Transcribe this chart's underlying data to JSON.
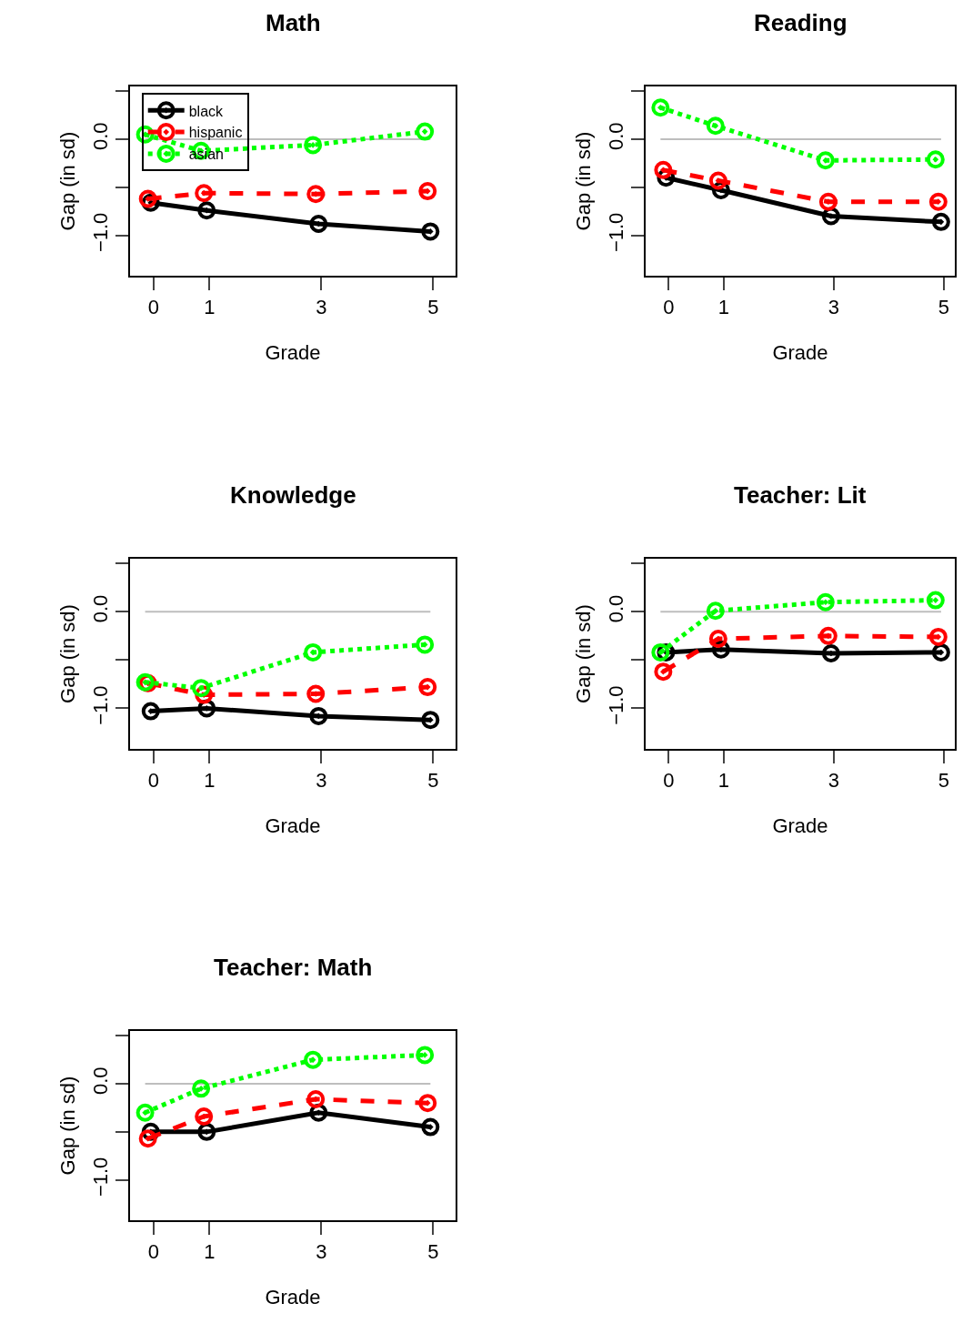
{
  "chart_data": [
    {
      "type": "line",
      "title": "Math",
      "xlabel": "Grade",
      "ylabel": "Gap (in sd)",
      "xlim": [
        -0.42,
        5.4
      ],
      "ylim": [
        -1.42,
        0.55
      ],
      "xticks": [
        0,
        1,
        3,
        5
      ],
      "yticks": [
        {
          "value": 0.5,
          "label": null
        },
        {
          "value": 0,
          "label": "0.0"
        },
        {
          "value": -0.5,
          "label": null
        },
        {
          "value": -1,
          "label": "−1.0"
        }
      ],
      "grid": false,
      "legend": "top left",
      "ref_lines": [
        {
          "axis": "y",
          "value": 0,
          "color": "#bebebe"
        }
      ],
      "series": [
        {
          "name": "black",
          "color": "#000000",
          "line_style": "solid",
          "marker": "circle",
          "x": [
            -0.05,
            0.95,
            2.95,
            4.95
          ],
          "values": [
            -0.66,
            -0.74,
            -0.88,
            -0.96
          ]
        },
        {
          "name": "hispanic",
          "color": "#ff0000",
          "line_style": "dashed",
          "marker": "circle",
          "x": [
            -0.1,
            0.9,
            2.9,
            4.9
          ],
          "values": [
            -0.62,
            -0.56,
            -0.57,
            -0.54
          ]
        },
        {
          "name": "asian",
          "color": "#00ff00",
          "line_style": "dotted",
          "marker": "circle",
          "x": [
            -0.15,
            0.85,
            2.85,
            4.85
          ],
          "values": [
            0.05,
            -0.12,
            -0.06,
            0.08
          ]
        }
      ]
    },
    {
      "type": "line",
      "title": "Reading",
      "xlabel": "Grade",
      "ylabel": "Gap (in sd)",
      "xlim": [
        -0.42,
        5.2
      ],
      "ylim": [
        -1.42,
        0.55
      ],
      "xticks": [
        0,
        1,
        3,
        5
      ],
      "yticks": [
        {
          "value": 0.5,
          "label": null
        },
        {
          "value": 0,
          "label": "0.0"
        },
        {
          "value": -0.5,
          "label": null
        },
        {
          "value": -1,
          "label": "−1.0"
        }
      ],
      "grid": false,
      "legend": false,
      "ref_lines": [
        {
          "axis": "y",
          "value": 0,
          "color": "#bebebe"
        }
      ],
      "series": [
        {
          "color": "#000000",
          "line_style": "solid",
          "marker": "circle",
          "x": [
            -0.05,
            0.95,
            2.95,
            4.95
          ],
          "values": [
            -0.4,
            -0.53,
            -0.8,
            -0.86
          ]
        },
        {
          "color": "#ff0000",
          "line_style": "dashed",
          "marker": "circle",
          "x": [
            -0.1,
            0.9,
            2.9,
            4.9
          ],
          "values": [
            -0.32,
            -0.43,
            -0.65,
            -0.65
          ]
        },
        {
          "color": "#00ff00",
          "line_style": "dotted",
          "marker": "circle",
          "x": [
            -0.15,
            0.85,
            2.85,
            4.85
          ],
          "values": [
            0.33,
            0.14,
            -0.22,
            -0.21
          ]
        }
      ]
    },
    {
      "type": "line",
      "title": "Knowledge",
      "xlabel": "Grade",
      "ylabel": "Gap (in sd)",
      "xlim": [
        -0.42,
        5.4
      ],
      "ylim": [
        -1.42,
        0.55
      ],
      "xticks": [
        0,
        1,
        3,
        5
      ],
      "yticks": [
        {
          "value": 0.5,
          "label": null
        },
        {
          "value": 0,
          "label": "0.0"
        },
        {
          "value": -0.5,
          "label": null
        },
        {
          "value": -1,
          "label": "−1.0"
        }
      ],
      "grid": false,
      "legend": false,
      "ref_lines": [
        {
          "axis": "y",
          "value": 0,
          "color": "#bebebe"
        }
      ],
      "series": [
        {
          "color": "#000000",
          "line_style": "solid",
          "marker": "circle",
          "x": [
            -0.05,
            0.95,
            2.95,
            4.95
          ],
          "values": [
            -1.03,
            -1.0,
            -1.08,
            -1.12
          ]
        },
        {
          "color": "#ff0000",
          "line_style": "dashed",
          "marker": "circle",
          "x": [
            -0.1,
            0.9,
            2.9,
            4.9
          ],
          "values": [
            -0.74,
            -0.86,
            -0.85,
            -0.78
          ]
        },
        {
          "color": "#00ff00",
          "line_style": "dotted",
          "marker": "circle",
          "x": [
            -0.15,
            0.85,
            2.85,
            4.85
          ],
          "values": [
            -0.73,
            -0.79,
            -0.42,
            -0.34
          ]
        }
      ]
    },
    {
      "type": "line",
      "title": "Teacher: Lit",
      "xlabel": "Grade",
      "ylabel": "Gap (in sd)",
      "xlim": [
        -0.42,
        5.2
      ],
      "ylim": [
        -1.42,
        0.55
      ],
      "xticks": [
        0,
        1,
        3,
        5
      ],
      "yticks": [
        {
          "value": 0.5,
          "label": null
        },
        {
          "value": 0,
          "label": "0.0"
        },
        {
          "value": -0.5,
          "label": null
        },
        {
          "value": -1,
          "label": "−1.0"
        }
      ],
      "grid": false,
      "legend": false,
      "ref_lines": [
        {
          "axis": "y",
          "value": 0,
          "color": "#bebebe"
        }
      ],
      "series": [
        {
          "color": "#000000",
          "line_style": "solid",
          "marker": "circle",
          "x": [
            -0.05,
            0.95,
            2.95,
            4.95
          ],
          "values": [
            -0.42,
            -0.39,
            -0.43,
            -0.42
          ]
        },
        {
          "color": "#ff0000",
          "line_style": "dashed",
          "marker": "circle",
          "x": [
            -0.1,
            0.9,
            2.9,
            4.9
          ],
          "values": [
            -0.62,
            -0.28,
            -0.25,
            -0.26
          ]
        },
        {
          "color": "#00ff00",
          "line_style": "dotted",
          "marker": "circle",
          "x": [
            -0.15,
            0.85,
            2.85,
            4.85
          ],
          "values": [
            -0.42,
            0.01,
            0.1,
            0.12
          ]
        }
      ]
    },
    {
      "type": "line",
      "title": "Teacher: Math",
      "xlabel": "Grade",
      "ylabel": "Gap (in sd)",
      "xlim": [
        -0.42,
        5.4
      ],
      "ylim": [
        -1.42,
        0.55
      ],
      "xticks": [
        0,
        1,
        3,
        5
      ],
      "yticks": [
        {
          "value": 0.5,
          "label": null
        },
        {
          "value": 0,
          "label": "0.0"
        },
        {
          "value": -0.5,
          "label": null
        },
        {
          "value": -1,
          "label": "−1.0"
        }
      ],
      "grid": false,
      "legend": false,
      "ref_lines": [
        {
          "axis": "y",
          "value": 0,
          "color": "#bebebe"
        }
      ],
      "series": [
        {
          "color": "#000000",
          "line_style": "solid",
          "marker": "circle",
          "x": [
            -0.05,
            0.95,
            2.95,
            4.95
          ],
          "values": [
            -0.5,
            -0.5,
            -0.3,
            -0.45
          ]
        },
        {
          "color": "#ff0000",
          "line_style": "dashed",
          "marker": "circle",
          "x": [
            -0.1,
            0.9,
            2.9,
            4.9
          ],
          "values": [
            -0.57,
            -0.34,
            -0.16,
            -0.2
          ]
        },
        {
          "color": "#00ff00",
          "line_style": "dotted",
          "marker": "circle",
          "x": [
            -0.15,
            0.85,
            2.85,
            4.85
          ],
          "values": [
            -0.3,
            -0.05,
            0.25,
            0.3
          ]
        }
      ]
    }
  ]
}
